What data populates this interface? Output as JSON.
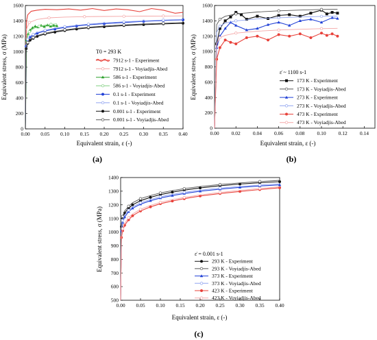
{
  "chart_data": [
    {
      "panel": "(a)",
      "type": "line",
      "xlabel": "Equivalent strain, ε (-)",
      "ylabel": "Equivalent stress, σ (MPa)",
      "xlim": [
        0,
        0.4
      ],
      "ylim": [
        0,
        1600
      ],
      "xticks": [
        "0.00",
        "0.05",
        "0.10",
        "0.15",
        "0.20",
        "0.25",
        "0.30",
        "0.35",
        "0.40"
      ],
      "yticks": [
        "0",
        "200",
        "400",
        "600",
        "800",
        "1000",
        "1200",
        "1400",
        "1600"
      ],
      "legend_title": "T0 = 293 K",
      "legend_position": "center-right",
      "series": [
        {
          "name": "7912 s-1 - Experiment",
          "color": "#e8413a",
          "style": "experiment",
          "marker": "wave",
          "x": [
            0,
            0.003,
            0.006,
            0.015,
            0.03,
            0.05,
            0.08,
            0.11,
            0.14,
            0.17,
            0.2,
            0.23,
            0.26,
            0.29,
            0.32,
            0.35,
            0.38,
            0.4
          ],
          "y": [
            0,
            1400,
            1480,
            1525,
            1540,
            1550,
            1545,
            1555,
            1540,
            1560,
            1535,
            1555,
            1545,
            1520,
            1560,
            1540,
            1500,
            1510
          ]
        },
        {
          "name": "7912 s-1 - Voyiadjis-Abed",
          "color": "#f4a6a6",
          "style": "model",
          "x": [
            0,
            0.002,
            0.01,
            0.03,
            0.06,
            0.1,
            0.15,
            0.2,
            0.25,
            0.3,
            0.35,
            0.4
          ],
          "y": [
            0,
            1280,
            1380,
            1420,
            1440,
            1450,
            1455,
            1458,
            1460,
            1462,
            1463,
            1465
          ]
        },
        {
          "name": "586 s-1 - Experiment",
          "color": "#2ca02c",
          "style": "experiment",
          "marker": "triangle",
          "x": [
            0,
            0.003,
            0.007,
            0.012,
            0.018,
            0.025,
            0.032,
            0.04,
            0.048,
            0.056,
            0.064,
            0.072,
            0.08
          ],
          "y": [
            0,
            1150,
            1230,
            1280,
            1310,
            1330,
            1320,
            1340,
            1325,
            1345,
            1330,
            1340,
            1335
          ]
        },
        {
          "name": "586 s-1 - Voyiadjis-Abed",
          "color": "#7fcf7f",
          "style": "model",
          "x": [
            0,
            0.003,
            0.01,
            0.02,
            0.035,
            0.05,
            0.065,
            0.08
          ],
          "y": [
            0,
            1170,
            1260,
            1300,
            1330,
            1345,
            1355,
            1362
          ]
        },
        {
          "name": "0.1 s-1 - Experiment",
          "color": "#1f3fd6",
          "style": "experiment",
          "marker": "circle",
          "x": [
            0,
            0.002,
            0.006,
            0.012,
            0.02,
            0.03,
            0.05,
            0.075,
            0.1,
            0.13,
            0.16,
            0.2,
            0.25,
            0.3,
            0.35,
            0.4
          ],
          "y": [
            0,
            1070,
            1150,
            1190,
            1215,
            1240,
            1270,
            1295,
            1315,
            1335,
            1350,
            1365,
            1380,
            1395,
            1405,
            1415
          ]
        },
        {
          "name": "0.1 s-1 - Voyiadjis-Abed",
          "color": "#8fa3f0",
          "style": "model",
          "x": [
            0,
            0.002,
            0.006,
            0.012,
            0.02,
            0.03,
            0.05,
            0.075,
            0.1,
            0.13,
            0.16,
            0.2,
            0.25,
            0.3,
            0.35,
            0.4
          ],
          "y": [
            0,
            1085,
            1160,
            1200,
            1225,
            1250,
            1280,
            1305,
            1325,
            1343,
            1358,
            1373,
            1388,
            1400,
            1411,
            1420
          ]
        },
        {
          "name": "0.001 s-1 - Experiment",
          "color": "#111111",
          "style": "experiment",
          "marker": "circle",
          "x": [
            0,
            0.002,
            0.006,
            0.012,
            0.02,
            0.03,
            0.05,
            0.075,
            0.1,
            0.13,
            0.16,
            0.2,
            0.25,
            0.3,
            0.35,
            0.4
          ],
          "y": [
            0,
            1040,
            1110,
            1150,
            1175,
            1200,
            1230,
            1255,
            1275,
            1295,
            1310,
            1325,
            1340,
            1352,
            1362,
            1370
          ]
        },
        {
          "name": "0.001 s-1 - Voyiadjis-Abed",
          "color": "#555555",
          "style": "model",
          "x": [
            0,
            0.002,
            0.006,
            0.012,
            0.02,
            0.03,
            0.05,
            0.075,
            0.1,
            0.13,
            0.16,
            0.2,
            0.25,
            0.3,
            0.35,
            0.4
          ],
          "y": [
            0,
            1050,
            1120,
            1160,
            1185,
            1210,
            1240,
            1265,
            1285,
            1303,
            1318,
            1333,
            1348,
            1360,
            1370,
            1378
          ]
        }
      ]
    },
    {
      "panel": "(b)",
      "type": "line",
      "xlabel": "Equivalent strain, ε (-)",
      "ylabel": "Equivalent stress, σ (MPa)",
      "xlim": [
        0,
        0.15
      ],
      "ylim": [
        0,
        1600
      ],
      "xticks": [
        "0.00",
        "0.02",
        "0.04",
        "0.06",
        "0.08",
        "0.10",
        "0.12",
        "0.14"
      ],
      "yticks": [
        "0",
        "200",
        "400",
        "600",
        "800",
        "1000",
        "1200",
        "1400",
        "1600"
      ],
      "legend_title": "ε̇ ~ 1100 s-1",
      "legend_position": "bottom-right",
      "series": [
        {
          "name": "173 K - Experiment",
          "color": "#111111",
          "style": "experiment",
          "marker": "square",
          "x": [
            0,
            0.002,
            0.005,
            0.01,
            0.015,
            0.02,
            0.025,
            0.03,
            0.04,
            0.05,
            0.06,
            0.07,
            0.08,
            0.09,
            0.1,
            0.105,
            0.11,
            0.115
          ],
          "y": [
            0,
            1100,
            1300,
            1400,
            1450,
            1510,
            1480,
            1420,
            1460,
            1430,
            1470,
            1480,
            1460,
            1500,
            1540,
            1490,
            1510,
            1500
          ]
        },
        {
          "name": "173 K - Voyiadjis-Abed",
          "color": "#555555",
          "style": "model",
          "x": [
            0,
            0.002,
            0.005,
            0.01,
            0.02,
            0.04,
            0.06,
            0.08,
            0.1,
            0.115
          ],
          "y": [
            0,
            1350,
            1420,
            1460,
            1490,
            1515,
            1530,
            1540,
            1548,
            1552
          ]
        },
        {
          "name": "273 K - Experiment",
          "color": "#1f3fd6",
          "style": "experiment",
          "marker": "triangle",
          "x": [
            0,
            0.002,
            0.005,
            0.01,
            0.015,
            0.02,
            0.03,
            0.04,
            0.05,
            0.06,
            0.07,
            0.08,
            0.09,
            0.1,
            0.11,
            0.115
          ],
          "y": [
            0,
            1050,
            1200,
            1300,
            1380,
            1340,
            1280,
            1300,
            1350,
            1380,
            1340,
            1400,
            1420,
            1380,
            1440,
            1430
          ]
        },
        {
          "name": "273 K - Voyiadjis-Abed",
          "color": "#8fa3f0",
          "style": "model",
          "x": [
            0,
            0.002,
            0.005,
            0.01,
            0.02,
            0.04,
            0.06,
            0.08,
            0.1,
            0.115
          ],
          "y": [
            0,
            1250,
            1330,
            1370,
            1400,
            1425,
            1440,
            1450,
            1458,
            1462
          ]
        },
        {
          "name": "473 K - Experiment",
          "color": "#e8413a",
          "style": "experiment",
          "marker": "circle",
          "x": [
            0,
            0.002,
            0.005,
            0.01,
            0.015,
            0.02,
            0.03,
            0.04,
            0.05,
            0.06,
            0.07,
            0.08,
            0.09,
            0.1,
            0.105,
            0.11,
            0.115
          ],
          "y": [
            0,
            900,
            1050,
            1150,
            1120,
            1100,
            1180,
            1200,
            1150,
            1220,
            1200,
            1230,
            1180,
            1240,
            1210,
            1230,
            1200
          ]
        },
        {
          "name": "473 K - Voyiadjis-Abed",
          "color": "#f4a6a6",
          "style": "model",
          "x": [
            0,
            0.002,
            0.005,
            0.01,
            0.02,
            0.04,
            0.06,
            0.08,
            0.1,
            0.115
          ],
          "y": [
            0,
            1100,
            1180,
            1210,
            1240,
            1265,
            1280,
            1290,
            1298,
            1302
          ]
        }
      ]
    },
    {
      "panel": "(c)",
      "type": "line",
      "xlabel": "Equivalent strain, ε (-)",
      "ylabel": "Equivalent stress, σ (MPa)",
      "xlim": [
        0,
        0.4
      ],
      "ylim": [
        500,
        1400
      ],
      "xticks": [
        "0.00",
        "0.05",
        "0.10",
        "0.15",
        "0.20",
        "0.25",
        "0.30",
        "0.35",
        "0.40"
      ],
      "yticks": [
        "500",
        "600",
        "700",
        "800",
        "900",
        "1000",
        "1100",
        "1200",
        "1300",
        "1400"
      ],
      "legend_title": "ε̇ = 0.001 s-1",
      "legend_position": "bottom-right",
      "series": [
        {
          "name": "293 K - Experiment",
          "color": "#111111",
          "style": "experiment",
          "marker": "circle",
          "x": [
            0,
            0.002,
            0.005,
            0.01,
            0.02,
            0.03,
            0.05,
            0.075,
            0.1,
            0.13,
            0.16,
            0.2,
            0.25,
            0.3,
            0.35,
            0.4
          ],
          "y": [
            500,
            1040,
            1100,
            1140,
            1175,
            1200,
            1230,
            1255,
            1275,
            1293,
            1308,
            1324,
            1340,
            1352,
            1362,
            1370
          ]
        },
        {
          "name": "293 K - Voyiadjis-Abed",
          "color": "#555555",
          "style": "model",
          "x": [
            0,
            0.002,
            0.005,
            0.01,
            0.02,
            0.03,
            0.05,
            0.075,
            0.1,
            0.13,
            0.16,
            0.2,
            0.25,
            0.3,
            0.35,
            0.4
          ],
          "y": [
            500,
            1060,
            1115,
            1155,
            1190,
            1215,
            1245,
            1268,
            1287,
            1304,
            1319,
            1334,
            1349,
            1361,
            1371,
            1380
          ]
        },
        {
          "name": "373 K - Experiment",
          "color": "#1f3fd6",
          "style": "experiment",
          "marker": "triangle",
          "x": [
            0,
            0.002,
            0.005,
            0.01,
            0.02,
            0.03,
            0.05,
            0.075,
            0.1,
            0.13,
            0.16,
            0.2,
            0.25,
            0.3,
            0.35,
            0.4
          ],
          "y": [
            500,
            1010,
            1070,
            1110,
            1150,
            1175,
            1205,
            1230,
            1250,
            1268,
            1283,
            1300,
            1315,
            1328,
            1338,
            1346
          ]
        },
        {
          "name": "373 K - Voyiadjis-Abed",
          "color": "#8fa3f0",
          "style": "model",
          "x": [
            0,
            0.002,
            0.005,
            0.01,
            0.02,
            0.03,
            0.05,
            0.075,
            0.1,
            0.13,
            0.16,
            0.2,
            0.25,
            0.3,
            0.35,
            0.4
          ],
          "y": [
            500,
            1025,
            1085,
            1125,
            1160,
            1185,
            1215,
            1240,
            1259,
            1277,
            1292,
            1308,
            1323,
            1335,
            1345,
            1354
          ]
        },
        {
          "name": "423 K - Experiment",
          "color": "#e8413a",
          "style": "experiment",
          "marker": "circle",
          "x": [
            0,
            0.002,
            0.005,
            0.01,
            0.02,
            0.03,
            0.05,
            0.075,
            0.1,
            0.13,
            0.16,
            0.2,
            0.25,
            0.3,
            0.35,
            0.4
          ],
          "y": [
            500,
            960,
            1010,
            1050,
            1090,
            1120,
            1155,
            1185,
            1208,
            1228,
            1245,
            1265,
            1283,
            1298,
            1312,
            1325
          ]
        },
        {
          "name": "423 K - Voyiadjis-Abed",
          "color": "#f4a6a6",
          "style": "model",
          "x": [
            0,
            0.002,
            0.005,
            0.01,
            0.02,
            0.03,
            0.05,
            0.075,
            0.1,
            0.13,
            0.16,
            0.2,
            0.25,
            0.3,
            0.35,
            0.4
          ],
          "y": [
            500,
            975,
            1025,
            1065,
            1105,
            1133,
            1167,
            1196,
            1218,
            1238,
            1254,
            1273,
            1291,
            1306,
            1320,
            1332
          ]
        }
      ]
    }
  ]
}
